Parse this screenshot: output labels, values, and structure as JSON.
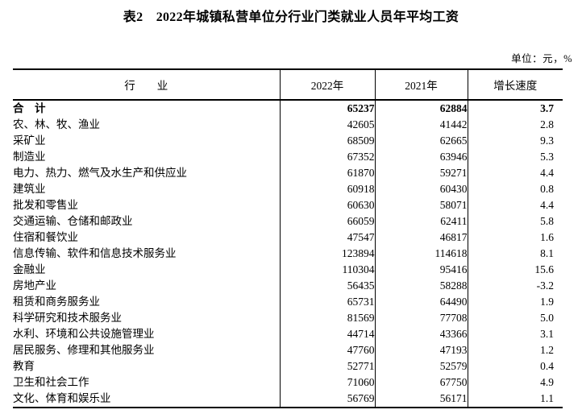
{
  "title": "表2　2022年城镇私营单位分行业门类就业人员年平均工资",
  "unit_note": "单位：元，%",
  "colors": {
    "text": "#000000",
    "border": "#000000",
    "background": "#ffffff"
  },
  "table": {
    "columns": [
      "行　　业",
      "2022年",
      "2021年",
      "增长速度"
    ],
    "rows": [
      {
        "industry": "合　计",
        "v2022": "65237",
        "v2021": "62884",
        "growth": "3.7",
        "bold": true
      },
      {
        "industry": "农、林、牧、渔业",
        "v2022": "42605",
        "v2021": "41442",
        "growth": "2.8",
        "bold": false
      },
      {
        "industry": "采矿业",
        "v2022": "68509",
        "v2021": "62665",
        "growth": "9.3",
        "bold": false
      },
      {
        "industry": "制造业",
        "v2022": "67352",
        "v2021": "63946",
        "growth": "5.3",
        "bold": false
      },
      {
        "industry": "电力、热力、燃气及水生产和供应业",
        "v2022": "61870",
        "v2021": "59271",
        "growth": "4.4",
        "bold": false
      },
      {
        "industry": "建筑业",
        "v2022": "60918",
        "v2021": "60430",
        "growth": "0.8",
        "bold": false
      },
      {
        "industry": "批发和零售业",
        "v2022": "60630",
        "v2021": "58071",
        "growth": "4.4",
        "bold": false
      },
      {
        "industry": "交通运输、仓储和邮政业",
        "v2022": "66059",
        "v2021": "62411",
        "growth": "5.8",
        "bold": false
      },
      {
        "industry": "住宿和餐饮业",
        "v2022": "47547",
        "v2021": "46817",
        "growth": "1.6",
        "bold": false
      },
      {
        "industry": "信息传输、软件和信息技术服务业",
        "v2022": "123894",
        "v2021": "114618",
        "growth": "8.1",
        "bold": false
      },
      {
        "industry": "金融业",
        "v2022": "110304",
        "v2021": "95416",
        "growth": "15.6",
        "bold": false
      },
      {
        "industry": "房地产业",
        "v2022": "56435",
        "v2021": "58288",
        "growth": "-3.2",
        "bold": false
      },
      {
        "industry": "租赁和商务服务业",
        "v2022": "65731",
        "v2021": "64490",
        "growth": "1.9",
        "bold": false
      },
      {
        "industry": "科学研究和技术服务业",
        "v2022": "81569",
        "v2021": "77708",
        "growth": "5.0",
        "bold": false
      },
      {
        "industry": "水利、环境和公共设施管理业",
        "v2022": "44714",
        "v2021": "43366",
        "growth": "3.1",
        "bold": false
      },
      {
        "industry": "居民服务、修理和其他服务业",
        "v2022": "47760",
        "v2021": "47193",
        "growth": "1.2",
        "bold": false
      },
      {
        "industry": "教育",
        "v2022": "52771",
        "v2021": "52579",
        "growth": "0.4",
        "bold": false
      },
      {
        "industry": "卫生和社会工作",
        "v2022": "71060",
        "v2021": "67750",
        "growth": "4.9",
        "bold": false
      },
      {
        "industry": "文化、体育和娱乐业",
        "v2022": "56769",
        "v2021": "56171",
        "growth": "1.1",
        "bold": false
      }
    ]
  },
  "chart_data": {
    "type": "table",
    "title": "表2　2022年城镇私营单位分行业门类就业人员年平均工资",
    "unit": "元，%",
    "categories": [
      "合计",
      "农、林、牧、渔业",
      "采矿业",
      "制造业",
      "电力、热力、燃气及水生产和供应业",
      "建筑业",
      "批发和零售业",
      "交通运输、仓储和邮政业",
      "住宿和餐饮业",
      "信息传输、软件和信息技术服务业",
      "金融业",
      "房地产业",
      "租赁和商务服务业",
      "科学研究和技术服务业",
      "水利、环境和公共设施管理业",
      "居民服务、修理和其他服务业",
      "教育",
      "卫生和社会工作",
      "文化、体育和娱乐业"
    ],
    "series": [
      {
        "name": "2022年",
        "values": [
          65237,
          42605,
          68509,
          67352,
          61870,
          60918,
          60630,
          66059,
          47547,
          123894,
          110304,
          56435,
          65731,
          81569,
          44714,
          47760,
          52771,
          71060,
          56769
        ]
      },
      {
        "name": "2021年",
        "values": [
          62884,
          41442,
          62665,
          63946,
          59271,
          60430,
          58071,
          62411,
          46817,
          114618,
          95416,
          58288,
          64490,
          77708,
          43366,
          47193,
          52579,
          67750,
          56171
        ]
      },
      {
        "name": "增长速度",
        "values": [
          3.7,
          2.8,
          9.3,
          5.3,
          4.4,
          0.8,
          4.4,
          5.8,
          1.6,
          8.1,
          15.6,
          -3.2,
          1.9,
          5.0,
          3.1,
          1.2,
          0.4,
          4.9,
          1.1
        ]
      }
    ]
  }
}
